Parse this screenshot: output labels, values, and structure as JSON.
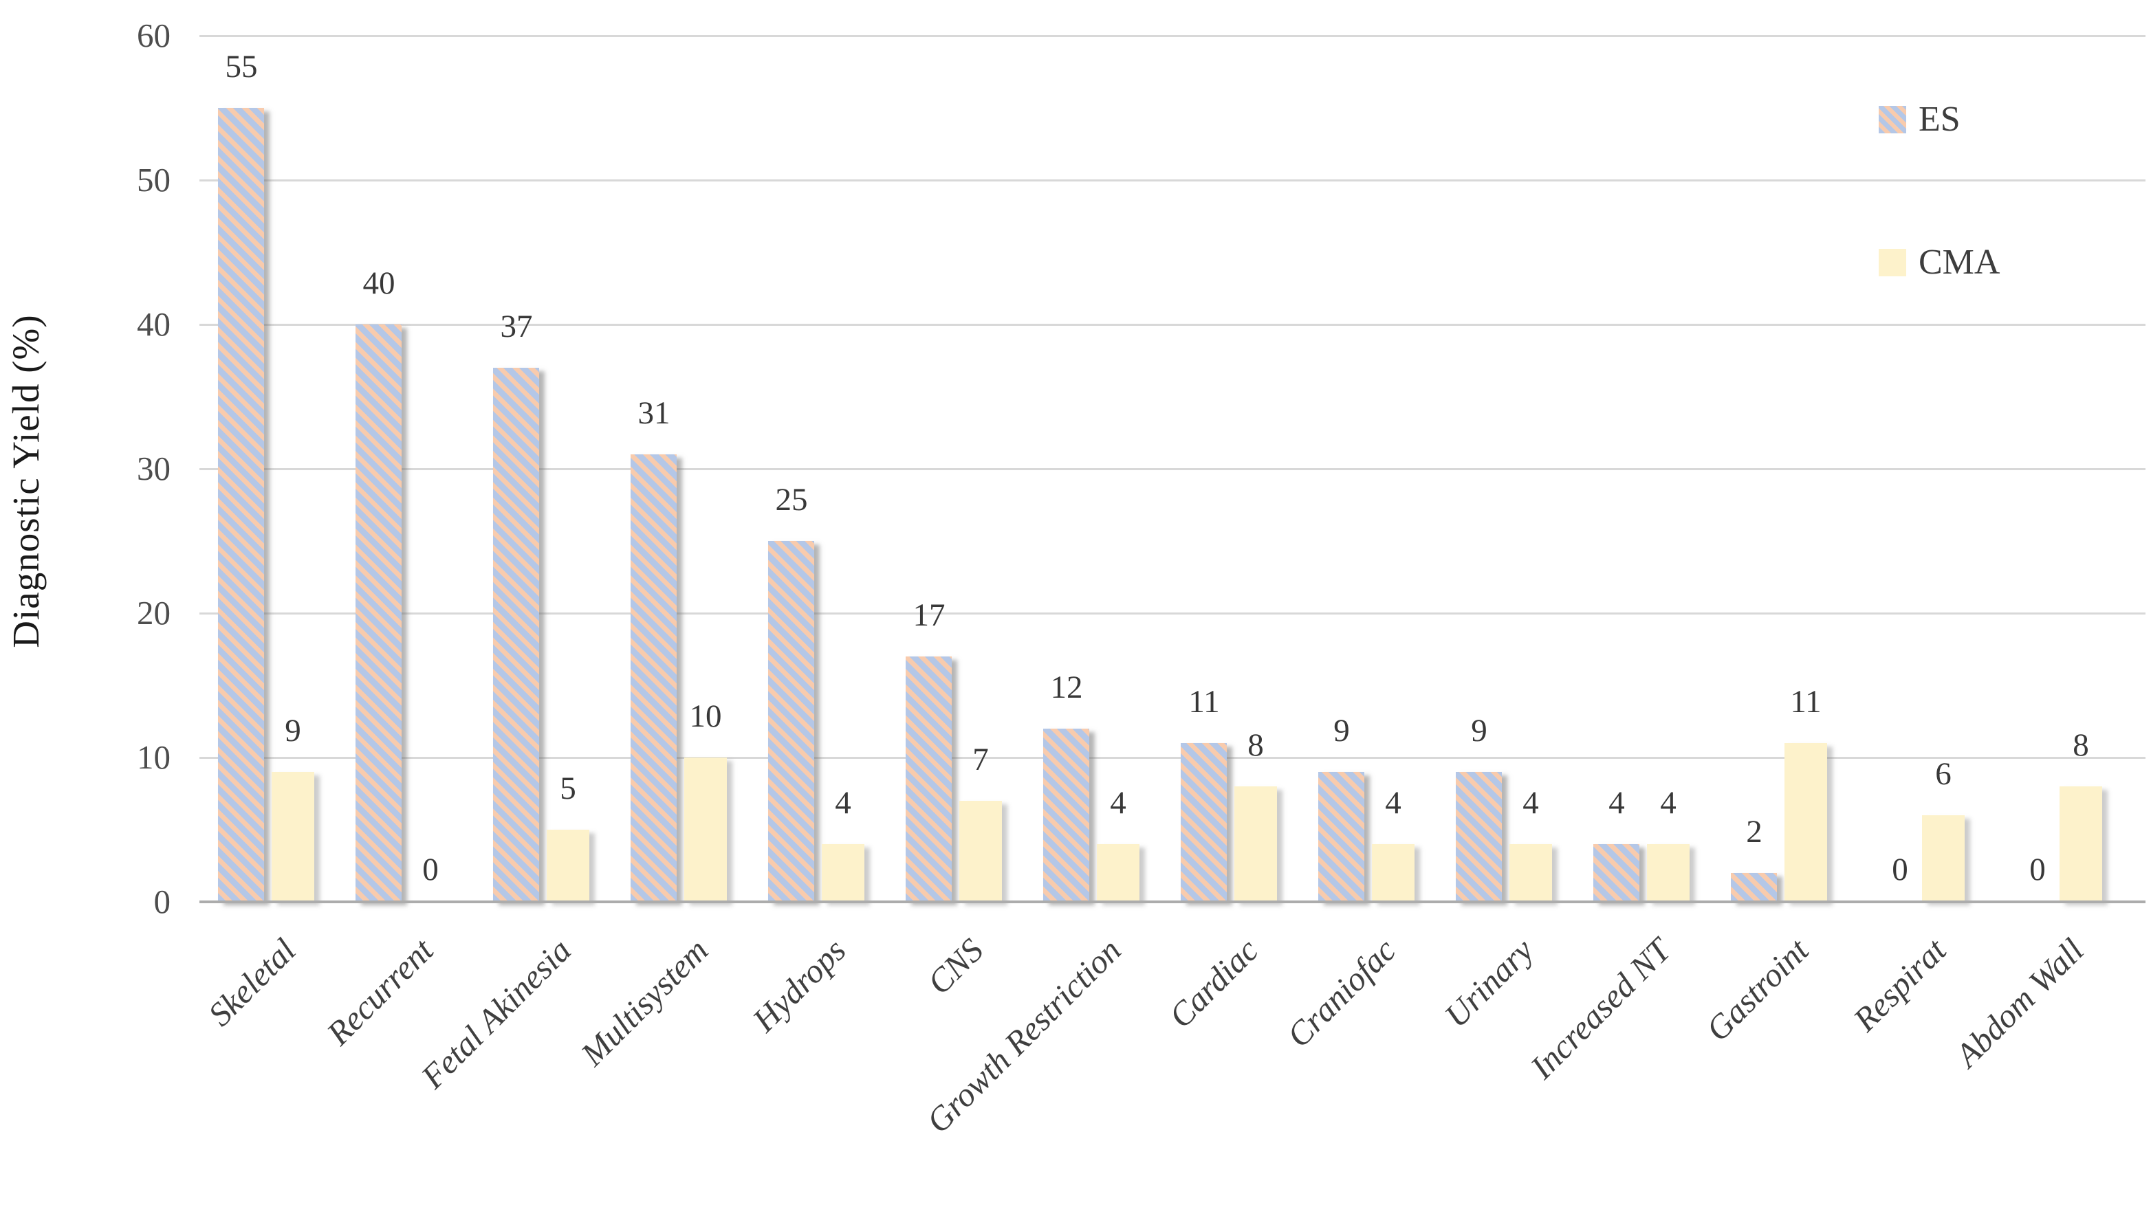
{
  "chart_data": {
    "type": "bar",
    "title": "",
    "xlabel": "",
    "ylabel": "Diagnostic Yield (%)",
    "ylim": [
      0,
      60
    ],
    "yticks": [
      0,
      10,
      20,
      30,
      40,
      50,
      60
    ],
    "grid": true,
    "legend_position": "top-right",
    "categories": [
      "Skeletal",
      "Recurrent",
      "Fetal Akinesia",
      "Multisystem",
      "Hydrops",
      "CNS",
      "Growth Restriction",
      "Cardiac",
      "Craniofac",
      "Urinary",
      "Increased NT",
      "Gastroint",
      "Respirat",
      "Abdom Wall"
    ],
    "series": [
      {
        "name": "ES",
        "style": "diagonal-stripe",
        "colors": [
          "#b4c7e7",
          "#f8cbad"
        ],
        "values": [
          55,
          40,
          37,
          31,
          25,
          17,
          12,
          11,
          9,
          9,
          4,
          2,
          0,
          0
        ]
      },
      {
        "name": "CMA",
        "style": "solid",
        "colors": [
          "#fdf2cb"
        ],
        "values": [
          9,
          0,
          5,
          10,
          4,
          7,
          4,
          8,
          4,
          4,
          4,
          11,
          6,
          8
        ]
      }
    ]
  },
  "colors": {
    "gridline": "#d8d8d8",
    "axis_line": "#acacac",
    "text": "#3f3f3f",
    "es_blue": "#b4c7e7",
    "es_peach": "#f8cbad",
    "cma_yellow": "#fdf2cb"
  }
}
